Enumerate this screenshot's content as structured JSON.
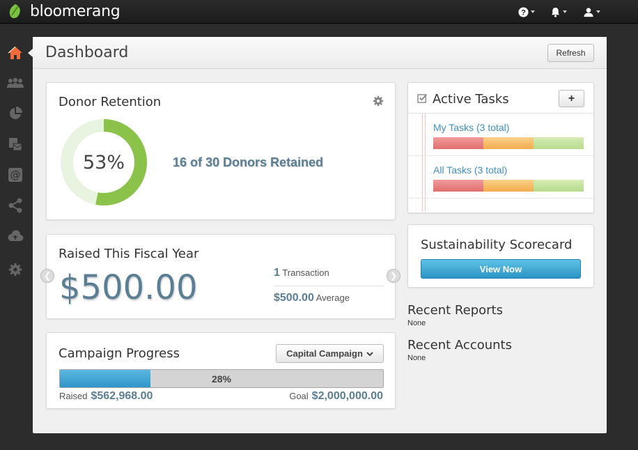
{
  "app": {
    "brand": "bloomerang"
  },
  "topbar": {
    "icons": [
      "help-icon",
      "bell-icon",
      "user-icon"
    ]
  },
  "sidebar": {
    "items": [
      "home-icon",
      "constituents-icon",
      "reports-icon",
      "interactions-icon",
      "email-icon",
      "share-icon",
      "cloud-icon",
      "settings-icon"
    ],
    "active": "home-icon"
  },
  "header": {
    "title": "Dashboard",
    "refresh_label": "Refresh"
  },
  "donor_retention": {
    "title": "Donor Retention",
    "percent_label": "53%",
    "percent": 0.53,
    "retained_text": "16 of 30 Donors Retained"
  },
  "raised": {
    "title": "Raised This Fiscal Year",
    "amount": "$500.00",
    "transactions_count": "1",
    "transactions_label": "Transaction",
    "average_value": "$500.00",
    "average_label": "Average"
  },
  "campaign": {
    "title": "Campaign Progress",
    "select_value": "Capital Campaign",
    "progress_label": "28%",
    "progress": 0.28,
    "raised_label": "Raised",
    "raised_value": "$562,968.00",
    "goal_label": "Goal",
    "goal_value": "$2,000,000.00"
  },
  "tasks": {
    "title": "Active Tasks",
    "add_label": "+",
    "rows": [
      {
        "label": "My Tasks (3 total)"
      },
      {
        "label": "All Tasks (3 total)"
      }
    ]
  },
  "scorecard": {
    "title": "Sustainability Scorecard",
    "button_label": "View Now"
  },
  "recent_reports": {
    "title": "Recent Reports",
    "value": "None"
  },
  "recent_accounts": {
    "title": "Recent Accounts",
    "value": "None"
  },
  "colors": {
    "accent": "#5a7e94",
    "link": "#3d8ec6",
    "donut": "#8bc34a",
    "donut_bg": "#e8f3e0"
  }
}
